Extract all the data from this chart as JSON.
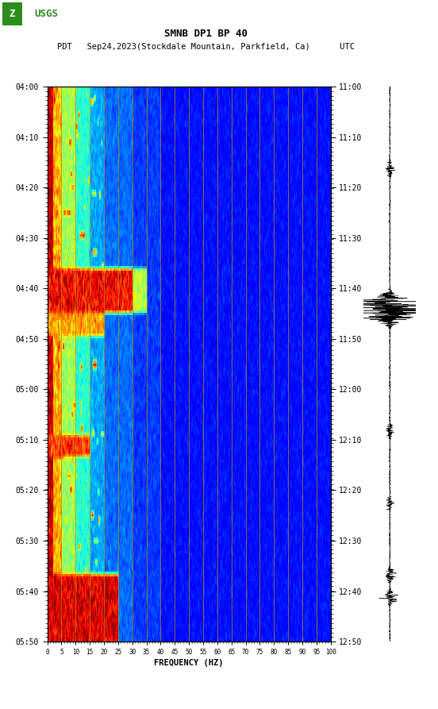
{
  "title_line1": "SMNB DP1 BP 40",
  "title_line2": "PDT   Sep24,2023(Stockdale Mountain, Parkfield, Ca)      UTC",
  "xlabel": "FREQUENCY (HZ)",
  "left_times": [
    "04:00",
    "04:10",
    "04:20",
    "04:30",
    "04:40",
    "04:50",
    "05:00",
    "05:10",
    "05:20",
    "05:30",
    "05:40",
    "05:50"
  ],
  "right_times": [
    "11:00",
    "11:10",
    "11:20",
    "11:30",
    "11:40",
    "11:50",
    "12:00",
    "12:10",
    "12:20",
    "12:30",
    "12:40",
    "12:50"
  ],
  "freq_labels": [
    "0",
    "5",
    "10",
    "15",
    "20",
    "25",
    "30",
    "35",
    "40",
    "45",
    "50",
    "55",
    "60",
    "65",
    "70",
    "75",
    "80",
    "85",
    "90",
    "95",
    "100"
  ],
  "freq_values": [
    0,
    5,
    10,
    15,
    20,
    25,
    30,
    35,
    40,
    45,
    50,
    55,
    60,
    65,
    70,
    75,
    80,
    85,
    90,
    95,
    100
  ],
  "vertical_lines_freq": [
    5,
    10,
    15,
    20,
    25,
    30,
    35,
    40,
    45,
    50,
    55,
    60,
    65,
    70,
    75,
    80,
    85,
    90,
    95
  ],
  "bg_color": "white",
  "cmap": "jet",
  "fig_width": 5.52,
  "fig_height": 8.93,
  "dpi": 100
}
